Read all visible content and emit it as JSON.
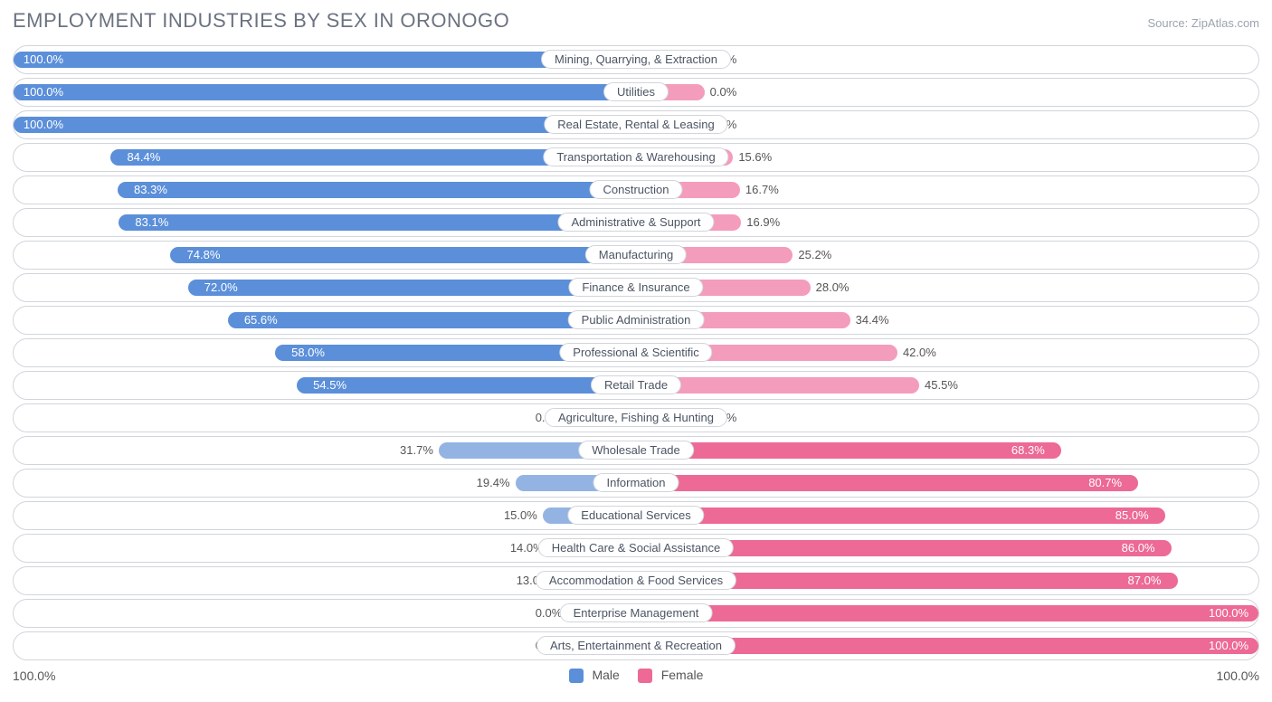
{
  "title": "EMPLOYMENT INDUSTRIES BY SEX IN ORONOGO",
  "source": "Source: ZipAtlas.com",
  "axis": {
    "left": "100.0%",
    "right": "100.0%"
  },
  "legend": {
    "male": {
      "label": "Male",
      "color": "#5b8fd9"
    },
    "female": {
      "label": "Female",
      "color": "#ec6a95"
    }
  },
  "style": {
    "male_color": "#5b8fd9",
    "male_color_light": "#93b4e3",
    "female_color": "#ec6a95",
    "female_color_light": "#f49cbb",
    "row_border_color": "#d1d5db",
    "label_text_color": "#4b5563",
    "title_color": "#6b7280",
    "inside_text_color": "#ffffff",
    "outside_text_color": "#555555",
    "stub_width_pct": 11
  },
  "rows": [
    {
      "label": "Mining, Quarrying, & Extraction",
      "male": 100.0,
      "female": 0.0,
      "male_txt": "100.0%",
      "female_txt": "0.0%"
    },
    {
      "label": "Utilities",
      "male": 100.0,
      "female": 0.0,
      "male_txt": "100.0%",
      "female_txt": "0.0%"
    },
    {
      "label": "Real Estate, Rental & Leasing",
      "male": 100.0,
      "female": 0.0,
      "male_txt": "100.0%",
      "female_txt": "0.0%"
    },
    {
      "label": "Transportation & Warehousing",
      "male": 84.4,
      "female": 15.6,
      "male_txt": "84.4%",
      "female_txt": "15.6%"
    },
    {
      "label": "Construction",
      "male": 83.3,
      "female": 16.7,
      "male_txt": "83.3%",
      "female_txt": "16.7%"
    },
    {
      "label": "Administrative & Support",
      "male": 83.1,
      "female": 16.9,
      "male_txt": "83.1%",
      "female_txt": "16.9%"
    },
    {
      "label": "Manufacturing",
      "male": 74.8,
      "female": 25.2,
      "male_txt": "74.8%",
      "female_txt": "25.2%"
    },
    {
      "label": "Finance & Insurance",
      "male": 72.0,
      "female": 28.0,
      "male_txt": "72.0%",
      "female_txt": "28.0%"
    },
    {
      "label": "Public Administration",
      "male": 65.6,
      "female": 34.4,
      "male_txt": "65.6%",
      "female_txt": "34.4%"
    },
    {
      "label": "Professional & Scientific",
      "male": 58.0,
      "female": 42.0,
      "male_txt": "58.0%",
      "female_txt": "42.0%"
    },
    {
      "label": "Retail Trade",
      "male": 54.5,
      "female": 45.5,
      "male_txt": "54.5%",
      "female_txt": "45.5%"
    },
    {
      "label": "Agriculture, Fishing & Hunting",
      "male": 0.0,
      "female": 0.0,
      "male_txt": "0.0%",
      "female_txt": "0.0%",
      "stub": true
    },
    {
      "label": "Wholesale Trade",
      "male": 31.7,
      "female": 68.3,
      "male_txt": "31.7%",
      "female_txt": "68.3%"
    },
    {
      "label": "Information",
      "male": 19.4,
      "female": 80.7,
      "male_txt": "19.4%",
      "female_txt": "80.7%"
    },
    {
      "label": "Educational Services",
      "male": 15.0,
      "female": 85.0,
      "male_txt": "15.0%",
      "female_txt": "85.0%"
    },
    {
      "label": "Health Care & Social Assistance",
      "male": 14.0,
      "female": 86.0,
      "male_txt": "14.0%",
      "female_txt": "86.0%"
    },
    {
      "label": "Accommodation & Food Services",
      "male": 13.0,
      "female": 87.0,
      "male_txt": "13.0%",
      "female_txt": "87.0%"
    },
    {
      "label": "Enterprise Management",
      "male": 0.0,
      "female": 100.0,
      "male_txt": "0.0%",
      "female_txt": "100.0%",
      "stub": true
    },
    {
      "label": "Arts, Entertainment & Recreation",
      "male": 0.0,
      "female": 100.0,
      "male_txt": "0.0%",
      "female_txt": "100.0%",
      "stub": true
    }
  ]
}
